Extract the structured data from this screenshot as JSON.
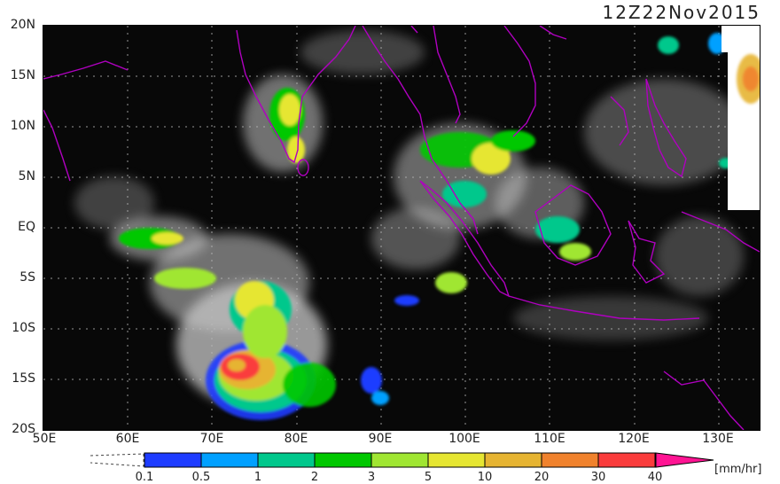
{
  "timestamp": "12Z22Nov2015",
  "lat_labels": [
    "20N",
    "15N",
    "10N",
    "5N",
    "EQ",
    "5S",
    "10S",
    "15S",
    "20S"
  ],
  "lon_labels": [
    "50E",
    "60E",
    "70E",
    "80E",
    "90E",
    "100E",
    "110E",
    "120E",
    "130E"
  ],
  "legend": {
    "values": [
      "0.1",
      "0.5",
      "1",
      "2",
      "3",
      "5",
      "10",
      "20",
      "30",
      "40"
    ],
    "colors": [
      "#1e3cff",
      "#00a0ff",
      "#00c88c",
      "#00c800",
      "#a0e632",
      "#e6e632",
      "#e6b432",
      "#f0822d",
      "#fa3c3c",
      "#ff1493"
    ],
    "unit": "[mm/hr]"
  }
}
